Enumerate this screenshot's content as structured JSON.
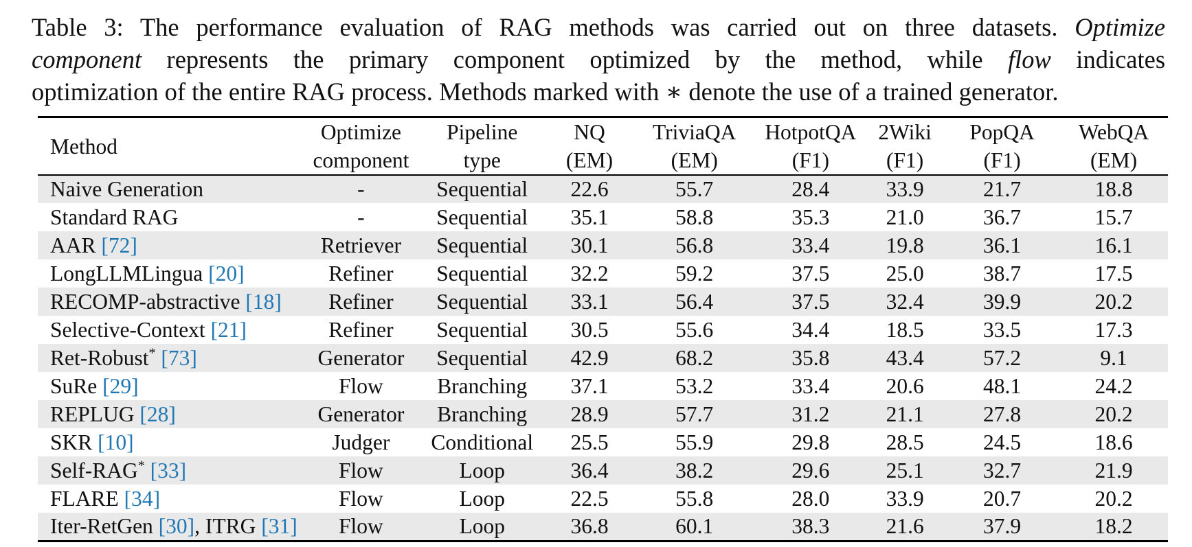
{
  "caption": {
    "label": "Table 3:",
    "line1_text": "The performance evaluation of RAG methods was carried out on three datasets.",
    "term1_a": "Optimize",
    "term1_b": "component",
    "line2_text": "represents the primary component optimized by the method, while",
    "term2": "flow",
    "line2_tail": "indicates",
    "line3_text": "optimization of the entire RAG process. Methods marked with ∗ denote the use of a trained generator."
  },
  "table": {
    "headers": [
      {
        "line1": "Method",
        "line2": ""
      },
      {
        "line1": "Optimize",
        "line2": "component"
      },
      {
        "line1": "Pipeline",
        "line2": "type"
      },
      {
        "line1": "NQ",
        "line2": "(EM)"
      },
      {
        "line1": "TriviaQA",
        "line2": "(EM)"
      },
      {
        "line1": "HotpotQA",
        "line2": "(F1)"
      },
      {
        "line1": "2Wiki",
        "line2": "(F1)"
      },
      {
        "line1": "PopQA",
        "line2": "(F1)"
      },
      {
        "line1": "WebQA",
        "line2": "(EM)"
      }
    ],
    "rows": [
      {
        "method": "Naive Generation",
        "star": "",
        "cites": [],
        "component": "-",
        "pipeline": "Sequential",
        "nq": "22.6",
        "triviaqa": "55.7",
        "hotpotqa": "28.4",
        "wiki2": "33.9",
        "popqa": "21.7",
        "webqa": "18.8"
      },
      {
        "method": "Standard RAG",
        "star": "",
        "cites": [],
        "component": "-",
        "pipeline": "Sequential",
        "nq": "35.1",
        "triviaqa": "58.8",
        "hotpotqa": "35.3",
        "wiki2": "21.0",
        "popqa": "36.7",
        "webqa": "15.7"
      },
      {
        "method": "AAR",
        "star": "",
        "cites": [
          "[72]"
        ],
        "component": "Retriever",
        "pipeline": "Sequential",
        "nq": "30.1",
        "triviaqa": "56.8",
        "hotpotqa": "33.4",
        "wiki2": "19.8",
        "popqa": "36.1",
        "webqa": "16.1"
      },
      {
        "method": "LongLLMLingua",
        "star": "",
        "cites": [
          "[20]"
        ],
        "component": "Refiner",
        "pipeline": "Sequential",
        "nq": "32.2",
        "triviaqa": "59.2",
        "hotpotqa": "37.5",
        "wiki2": "25.0",
        "popqa": "38.7",
        "webqa": "17.5"
      },
      {
        "method": "RECOMP-abstractive",
        "star": "",
        "cites": [
          "[18]"
        ],
        "component": "Refiner",
        "pipeline": "Sequential",
        "nq": "33.1",
        "triviaqa": "56.4",
        "hotpotqa": "37.5",
        "wiki2": "32.4",
        "popqa": "39.9",
        "webqa": "20.2"
      },
      {
        "method": "Selective-Context",
        "star": "",
        "cites": [
          "[21]"
        ],
        "component": "Refiner",
        "pipeline": "Sequential",
        "nq": "30.5",
        "triviaqa": "55.6",
        "hotpotqa": "34.4",
        "wiki2": "18.5",
        "popqa": "33.5",
        "webqa": "17.3"
      },
      {
        "method": "Ret-Robust",
        "star": "*",
        "cites": [
          "[73]"
        ],
        "component": "Generator",
        "pipeline": "Sequential",
        "nq": "42.9",
        "triviaqa": "68.2",
        "hotpotqa": "35.8",
        "wiki2": "43.4",
        "popqa": "57.2",
        "webqa": "9.1"
      },
      {
        "method": "SuRe",
        "star": "",
        "cites": [
          "[29]"
        ],
        "component": "Flow",
        "pipeline": "Branching",
        "nq": "37.1",
        "triviaqa": "53.2",
        "hotpotqa": "33.4",
        "wiki2": "20.6",
        "popqa": "48.1",
        "webqa": "24.2"
      },
      {
        "method": "REPLUG",
        "star": "",
        "cites": [
          "[28]"
        ],
        "component": "Generator",
        "pipeline": "Branching",
        "nq": "28.9",
        "triviaqa": "57.7",
        "hotpotqa": "31.2",
        "wiki2": "21.1",
        "popqa": "27.8",
        "webqa": "20.2"
      },
      {
        "method": "SKR",
        "star": "",
        "cites": [
          "[10]"
        ],
        "component": "Judger",
        "pipeline": "Conditional",
        "nq": "25.5",
        "triviaqa": "55.9",
        "hotpotqa": "29.8",
        "wiki2": "28.5",
        "popqa": "24.5",
        "webqa": "18.6"
      },
      {
        "method": "Self-RAG",
        "star": "*",
        "cites": [
          "[33]"
        ],
        "component": "Flow",
        "pipeline": "Loop",
        "nq": "36.4",
        "triviaqa": "38.2",
        "hotpotqa": "29.6",
        "wiki2": "25.1",
        "popqa": "32.7",
        "webqa": "21.9"
      },
      {
        "method": "FLARE",
        "star": "",
        "cites": [
          "[34]"
        ],
        "component": "Flow",
        "pipeline": "Loop",
        "nq": "22.5",
        "triviaqa": "55.8",
        "hotpotqa": "28.0",
        "wiki2": "33.9",
        "popqa": "20.7",
        "webqa": "20.2"
      },
      {
        "method": "Iter-RetGen",
        "star": "",
        "cites": [
          "[30]"
        ],
        "method2": ", ITRG",
        "cites2": [
          "[31]"
        ],
        "component": "Flow",
        "pipeline": "Loop",
        "nq": "36.8",
        "triviaqa": "60.1",
        "hotpotqa": "38.3",
        "wiki2": "21.6",
        "popqa": "37.9",
        "webqa": "18.2"
      }
    ]
  }
}
